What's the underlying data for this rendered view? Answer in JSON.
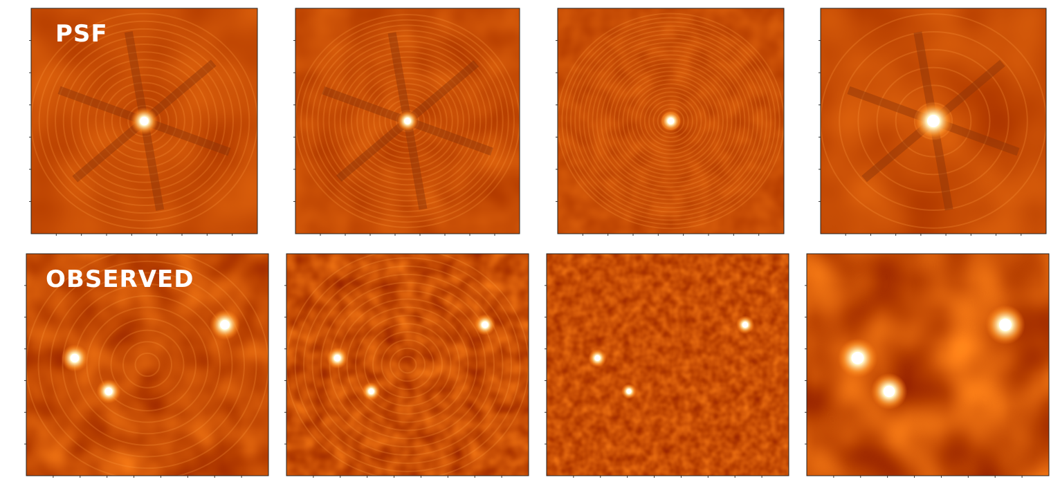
{
  "rows": [
    {
      "label": "PSF"
    },
    {
      "label": "OBSERVED"
    }
  ]
}
